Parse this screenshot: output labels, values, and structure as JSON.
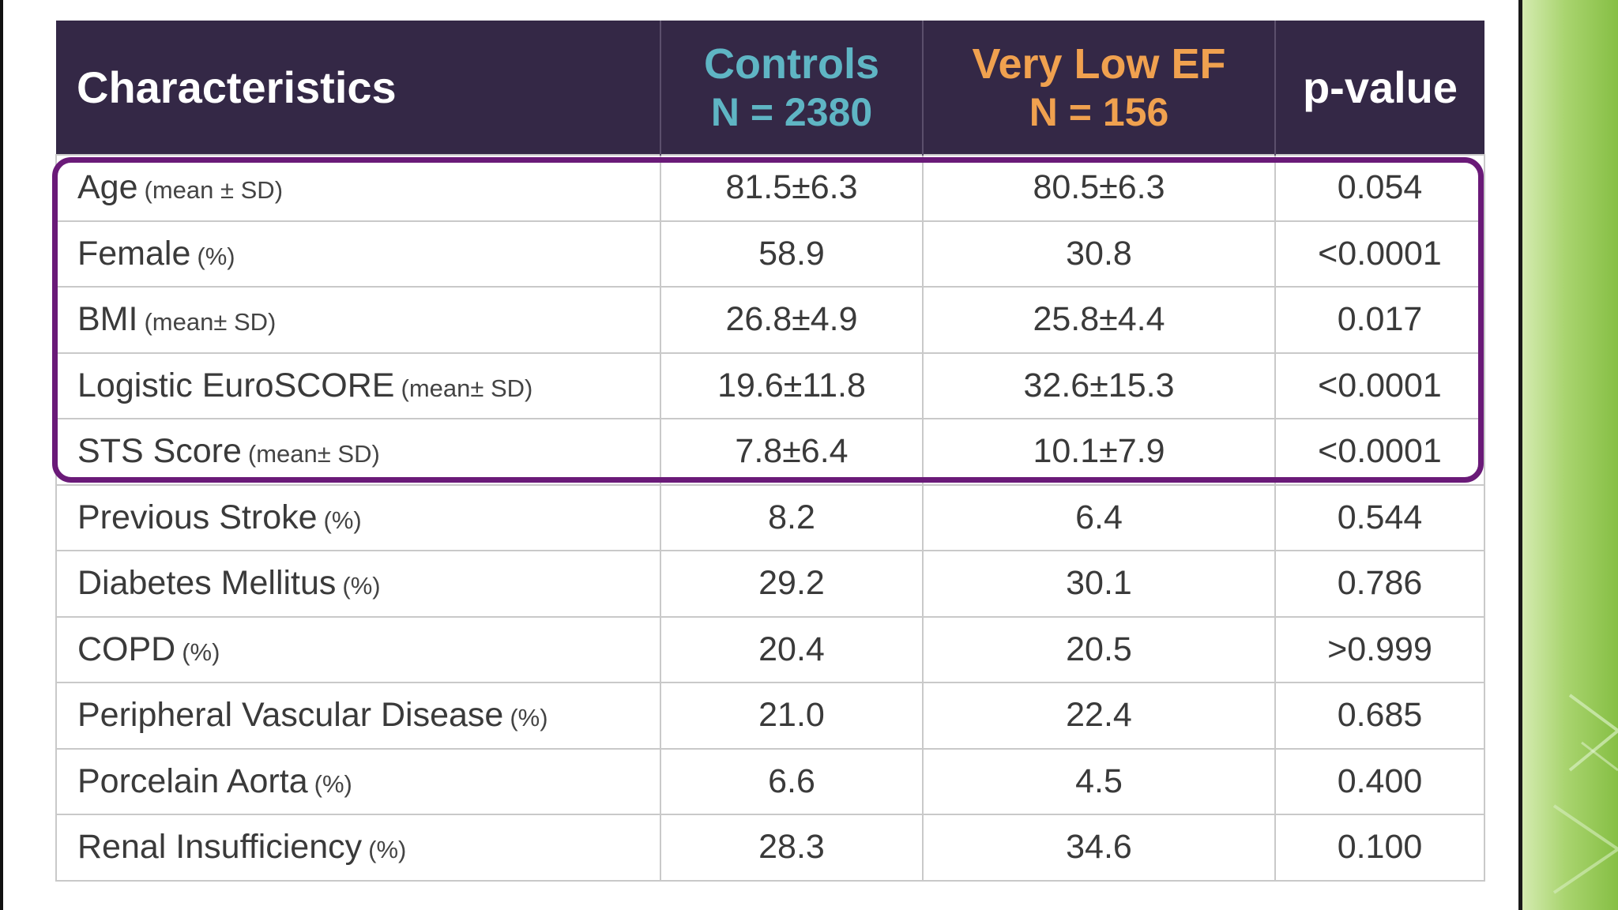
{
  "table": {
    "headers": {
      "characteristics": "Characteristics",
      "controls_name": "Controls",
      "controls_n": "N = 2380",
      "very_low_name": "Very Low EF",
      "very_low_n": "N = 156",
      "pvalue": "p-value"
    },
    "colors": {
      "header_bg": "#342846",
      "controls": "#5fb5c4",
      "very_low_ef": "#f0a14f",
      "highlight_border": "#6a1a78"
    },
    "rows": [
      {
        "label": "Age",
        "unit": "(mean ± SD)",
        "controls": "81.5±6.3",
        "very_low_ef": "80.5±6.3",
        "p": "0.054"
      },
      {
        "label": "Female",
        "unit": "(%)",
        "controls": "58.9",
        "very_low_ef": "30.8",
        "p": "<0.0001"
      },
      {
        "label": "BMI",
        "unit": "(mean± SD)",
        "controls": "26.8±4.9",
        "very_low_ef": "25.8±4.4",
        "p": "0.017"
      },
      {
        "label": "Logistic EuroSCORE",
        "unit": "(mean± SD)",
        "controls": "19.6±11.8",
        "very_low_ef": "32.6±15.3",
        "p": "<0.0001"
      },
      {
        "label": "STS  Score",
        "unit": "(mean± SD)",
        "controls": "7.8±6.4",
        "very_low_ef": "10.1±7.9",
        "p": "<0.0001"
      },
      {
        "label": "Previous Stroke",
        "unit": "(%)",
        "controls": "8.2",
        "very_low_ef": "6.4",
        "p": "0.544"
      },
      {
        "label": "Diabetes Mellitus",
        "unit": "(%)",
        "controls": "29.2",
        "very_low_ef": "30.1",
        "p": "0.786"
      },
      {
        "label": "COPD",
        "unit": "(%)",
        "controls": "20.4",
        "very_low_ef": "20.5",
        "p": ">0.999"
      },
      {
        "label": "Peripheral Vascular Disease",
        "unit": "(%)",
        "controls": "21.0",
        "very_low_ef": "22.4",
        "p": "0.685"
      },
      {
        "label": "Porcelain Aorta",
        "unit": "(%)",
        "controls": "6.6",
        "very_low_ef": "4.5",
        "p": "0.400"
      },
      {
        "label": "Renal Insufficiency",
        "unit": "(%)",
        "controls": "28.3",
        "very_low_ef": "34.6",
        "p": "0.100"
      }
    ]
  }
}
